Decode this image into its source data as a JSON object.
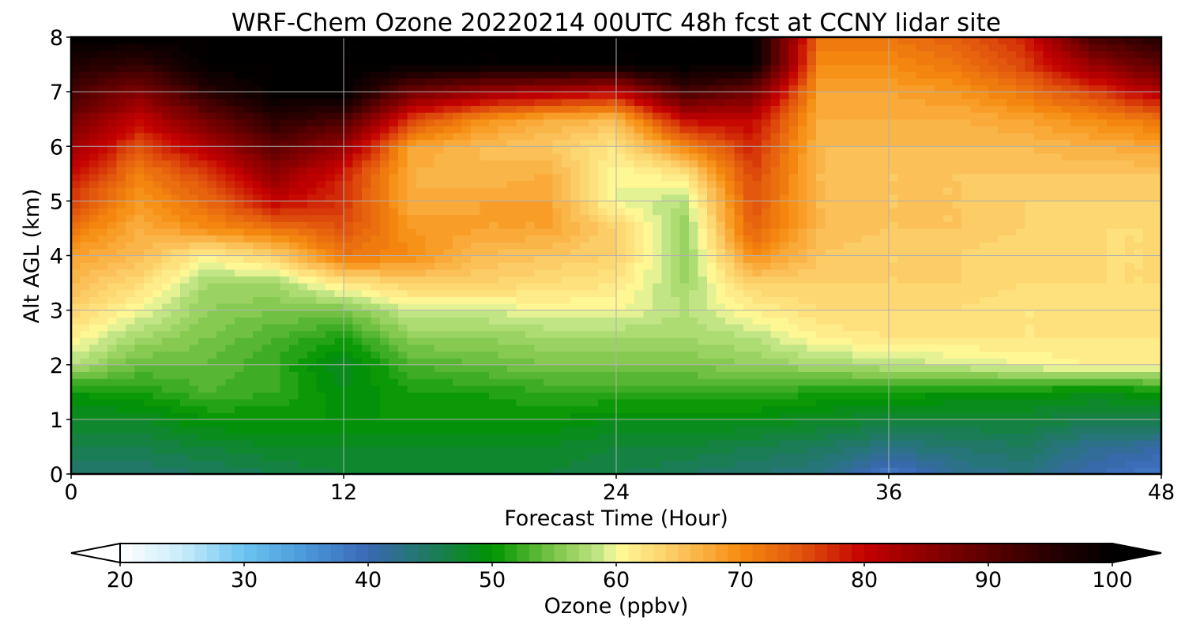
{
  "chart_data": {
    "type": "heatmap",
    "title": "WRF-Chem Ozone  20220214 00UTC 48h fcst at CCNY lidar site",
    "xlabel": "Forecast Time (Hour)",
    "ylabel": "Alt AGL (km)",
    "xlim": [
      0,
      48
    ],
    "ylim": [
      0,
      8
    ],
    "xticks": [
      0,
      12,
      24,
      36,
      48
    ],
    "yticks": [
      0,
      1,
      2,
      3,
      4,
      5,
      6,
      7,
      8
    ],
    "grid": true,
    "x": [
      0,
      3,
      6,
      9,
      12,
      15,
      18,
      21,
      24,
      27,
      30,
      33,
      36,
      39,
      42,
      45,
      48
    ],
    "y": [
      0,
      0.5,
      1,
      1.5,
      2,
      2.5,
      3,
      3.5,
      4,
      4.5,
      5,
      5.5,
      6,
      6.5,
      7,
      7.5,
      8
    ],
    "z": [
      [
        44,
        44,
        45,
        46,
        47,
        47,
        47,
        47,
        46,
        45,
        44,
        43,
        38,
        42,
        43,
        40,
        38
      ],
      [
        46,
        46,
        47,
        48,
        48,
        48,
        48,
        48,
        47,
        47,
        46,
        45,
        43,
        44,
        45,
        42,
        41
      ],
      [
        48,
        48,
        50,
        50,
        50,
        50,
        50,
        50,
        49,
        49,
        49,
        48,
        47,
        47,
        47,
        46,
        46
      ],
      [
        50,
        51,
        53,
        52,
        49,
        51,
        51,
        52,
        52,
        52,
        52,
        51,
        51,
        50,
        50,
        49,
        50
      ],
      [
        58,
        54,
        54,
        52,
        48,
        53,
        54,
        55,
        55,
        55,
        56,
        57,
        58,
        59,
        60,
        61,
        61
      ],
      [
        61,
        57,
        55,
        53,
        51,
        56,
        56,
        57,
        57,
        57,
        58,
        61,
        62,
        62,
        62,
        62,
        62
      ],
      [
        64,
        60,
        56,
        55,
        55,
        59,
        59,
        60,
        60,
        58,
        61,
        63,
        63,
        63,
        62,
        62,
        62
      ],
      [
        66,
        63,
        57,
        57,
        62,
        64,
        64,
        63,
        62,
        57,
        64,
        64,
        64,
        64,
        63,
        63,
        63
      ],
      [
        68,
        66,
        61,
        64,
        72,
        70,
        66,
        65,
        64,
        56,
        70,
        65,
        64,
        64,
        63,
        63,
        63
      ],
      [
        72,
        67,
        70,
        72,
        75,
        69,
        68,
        68,
        64,
        56,
        74,
        66,
        65,
        65,
        64,
        63,
        63
      ],
      [
        76,
        69,
        73,
        80,
        77,
        67,
        68,
        68,
        60,
        58,
        75,
        66,
        65,
        65,
        64,
        64,
        64
      ],
      [
        80,
        71,
        76,
        85,
        78,
        67,
        66,
        67,
        60,
        62,
        76,
        66,
        65,
        65,
        65,
        65,
        65
      ],
      [
        84,
        75,
        82,
        90,
        84,
        68,
        66,
        65,
        62,
        70,
        78,
        66,
        66,
        66,
        66,
        67,
        68
      ],
      [
        88,
        80,
        88,
        95,
        92,
        76,
        70,
        67,
        66,
        80,
        80,
        67,
        67,
        67,
        68,
        70,
        72
      ],
      [
        92,
        86,
        95,
        100,
        100,
        88,
        84,
        82,
        80,
        92,
        88,
        68,
        68,
        69,
        72,
        76,
        82
      ],
      [
        96,
        94,
        100,
        100,
        100,
        100,
        100,
        100,
        100,
        100,
        100,
        70,
        70,
        72,
        76,
        84,
        90
      ],
      [
        100,
        100,
        100,
        100,
        100,
        100,
        100,
        100,
        100,
        100,
        100,
        72,
        72,
        74,
        78,
        92,
        96
      ]
    ],
    "colorbar": {
      "label": "Ozone  (ppbv)",
      "min": 20,
      "max": 100,
      "step": 1,
      "ticks": [
        20,
        30,
        40,
        50,
        60,
        70,
        80,
        90,
        100
      ],
      "extend": "both",
      "orientation": "horizontal",
      "stops": [
        {
          "v": 20,
          "c": "#ffffff"
        },
        {
          "v": 25,
          "c": "#c9ecfa"
        },
        {
          "v": 30,
          "c": "#6cc4f0"
        },
        {
          "v": 35,
          "c": "#4a97d9"
        },
        {
          "v": 40,
          "c": "#3a68b4"
        },
        {
          "v": 45,
          "c": "#1e7a5e"
        },
        {
          "v": 50,
          "c": "#009400"
        },
        {
          "v": 55,
          "c": "#7cc64a"
        },
        {
          "v": 59,
          "c": "#cbe98c"
        },
        {
          "v": 60,
          "c": "#fffb9a"
        },
        {
          "v": 65,
          "c": "#fcc760"
        },
        {
          "v": 70,
          "c": "#f68c10"
        },
        {
          "v": 75,
          "c": "#e0520c"
        },
        {
          "v": 80,
          "c": "#c40000"
        },
        {
          "v": 85,
          "c": "#8e0000"
        },
        {
          "v": 90,
          "c": "#5c0000"
        },
        {
          "v": 95,
          "c": "#280000"
        },
        {
          "v": 100,
          "c": "#000000"
        }
      ]
    }
  }
}
